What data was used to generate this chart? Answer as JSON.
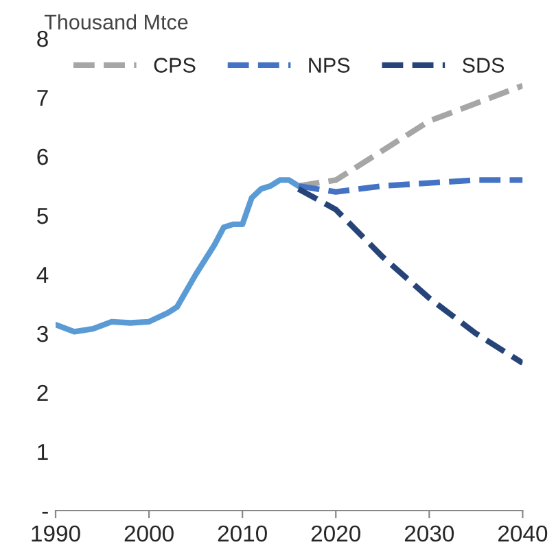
{
  "chart_data": {
    "type": "line",
    "ylabel": "Thousand Mtce",
    "xlim": [
      1990,
      2040
    ],
    "xticks": [
      1990,
      2000,
      2010,
      2020,
      2030,
      2040
    ],
    "ylim": [
      0,
      8
    ],
    "yticks": [
      {
        "value": 0,
        "label": "-"
      },
      1,
      2,
      3,
      4,
      5,
      6,
      7,
      8
    ],
    "grid": false,
    "legend": "top",
    "line_style": "solid",
    "series": [
      {
        "color": "#5b9bd5",
        "x": [
          1990,
          1992,
          1994,
          1996,
          1998,
          2000,
          2002,
          2003,
          2005,
          2007,
          2008,
          2009,
          2010,
          2011,
          2012,
          2013,
          2014,
          2015,
          2016
        ],
        "values": [
          3.15,
          3.03,
          3.08,
          3.2,
          3.18,
          3.2,
          3.35,
          3.45,
          4.0,
          4.5,
          4.8,
          4.85,
          4.85,
          5.3,
          5.45,
          5.5,
          5.6,
          5.6,
          5.5
        ]
      },
      {
        "name": "CPS",
        "color": "#a6a6a6",
        "line_style": "dashed",
        "x": [
          2016,
          2020,
          2025,
          2030,
          2035,
          2040
        ],
        "values": [
          5.5,
          5.6,
          6.1,
          6.6,
          6.9,
          7.2
        ]
      },
      {
        "name": "NPS",
        "color": "#4472c4",
        "line_style": "dashed",
        "x": [
          2016,
          2020,
          2025,
          2030,
          2035,
          2040
        ],
        "values": [
          5.5,
          5.4,
          5.5,
          5.55,
          5.6,
          5.6
        ]
      },
      {
        "name": "SDS",
        "color": "#264478",
        "line_style": "dashed",
        "x": [
          2016,
          2020,
          2025,
          2030,
          2035,
          2040
        ],
        "values": [
          5.45,
          5.1,
          4.3,
          3.6,
          3.0,
          2.5
        ]
      }
    ]
  }
}
